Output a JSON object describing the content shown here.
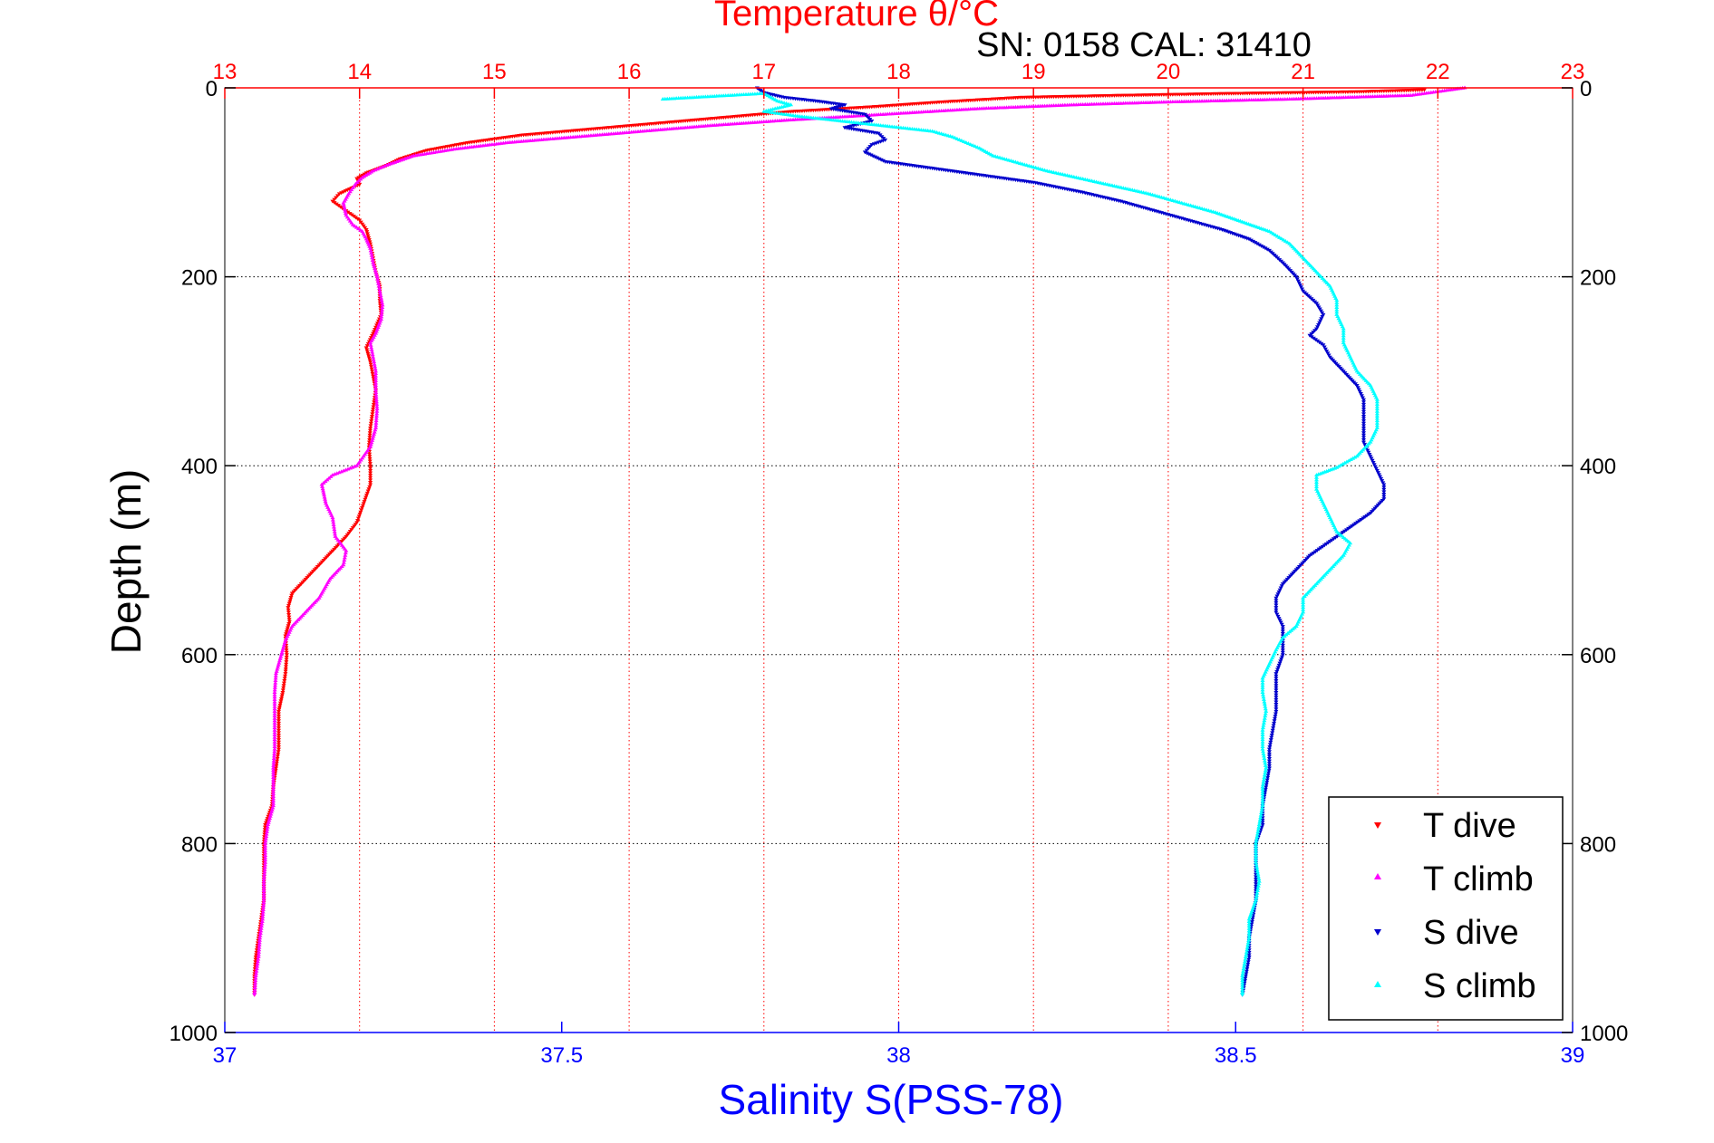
{
  "chart_data": {
    "type": "scatter",
    "title": "Temperature θ/°C",
    "subtitle": "SN: 0158  CAL: 31410",
    "xlabel_bottom": "Salinity S(PSS-78)",
    "ylabel": "Depth (m)",
    "xlim_temperature": [
      13,
      23
    ],
    "xlim_salinity": [
      37,
      39
    ],
    "ylim": [
      0,
      1000
    ],
    "y_reversed": true,
    "temperature_ticks": [
      "13",
      "14",
      "15",
      "16",
      "17",
      "18",
      "19",
      "20",
      "21",
      "22",
      "23"
    ],
    "salinity_ticks": [
      "37",
      "37.5",
      "38",
      "38.5",
      "39"
    ],
    "depth_ticks": [
      "0",
      "200",
      "400",
      "600",
      "800",
      "1000"
    ],
    "grid": true,
    "legend_position": "bottom-right",
    "colors": {
      "temperature_axis": "#ff0000",
      "salinity_axis": "#0000ff",
      "t_dive": "#ff0000",
      "t_climb": "#ff00ff",
      "s_dive": "#0000cc",
      "s_climb": "#00ffff"
    },
    "series": [
      {
        "name": "T dive",
        "axis": "temperature",
        "marker": "triangle-down",
        "points": [
          [
            21.9,
            2
          ],
          [
            21.4,
            4
          ],
          [
            20.4,
            6
          ],
          [
            19.6,
            8
          ],
          [
            18.9,
            10
          ],
          [
            18.3,
            15
          ],
          [
            17.8,
            20
          ],
          [
            17.2,
            25
          ],
          [
            16.8,
            30
          ],
          [
            16.4,
            35
          ],
          [
            16.0,
            40
          ],
          [
            15.6,
            45
          ],
          [
            15.2,
            50
          ],
          [
            14.8,
            58
          ],
          [
            14.5,
            66
          ],
          [
            14.3,
            75
          ],
          [
            14.2,
            82
          ],
          [
            14.05,
            90
          ],
          [
            13.98,
            96
          ],
          [
            14.0,
            102
          ],
          [
            13.85,
            112
          ],
          [
            13.8,
            120
          ],
          [
            13.9,
            130
          ],
          [
            14.0,
            140
          ],
          [
            14.05,
            150
          ],
          [
            14.08,
            165
          ],
          [
            14.1,
            180
          ],
          [
            14.12,
            195
          ],
          [
            14.15,
            210
          ],
          [
            14.15,
            225
          ],
          [
            14.16,
            240
          ],
          [
            14.1,
            260
          ],
          [
            14.05,
            275
          ],
          [
            14.08,
            290
          ],
          [
            14.1,
            305
          ],
          [
            14.12,
            320
          ],
          [
            14.1,
            340
          ],
          [
            14.08,
            360
          ],
          [
            14.07,
            380
          ],
          [
            14.08,
            400
          ],
          [
            14.08,
            420
          ],
          [
            14.03,
            440
          ],
          [
            13.98,
            460
          ],
          [
            13.9,
            475
          ],
          [
            13.8,
            490
          ],
          [
            13.7,
            505
          ],
          [
            13.6,
            520
          ],
          [
            13.5,
            535
          ],
          [
            13.47,
            550
          ],
          [
            13.48,
            565
          ],
          [
            13.45,
            580
          ],
          [
            13.46,
            600
          ],
          [
            13.45,
            620
          ],
          [
            13.43,
            640
          ],
          [
            13.4,
            660
          ],
          [
            13.4,
            680
          ],
          [
            13.4,
            700
          ],
          [
            13.38,
            720
          ],
          [
            13.36,
            740
          ],
          [
            13.35,
            760
          ],
          [
            13.3,
            780
          ],
          [
            13.29,
            800
          ],
          [
            13.29,
            820
          ],
          [
            13.29,
            840
          ],
          [
            13.29,
            860
          ],
          [
            13.27,
            880
          ],
          [
            13.25,
            900
          ],
          [
            13.23,
            920
          ],
          [
            13.22,
            940
          ],
          [
            13.22,
            960
          ]
        ]
      },
      {
        "name": "T climb",
        "axis": "temperature",
        "marker": "triangle-up",
        "points": [
          [
            22.2,
            0
          ],
          [
            21.8,
            8
          ],
          [
            20.9,
            12
          ],
          [
            20.0,
            15
          ],
          [
            19.3,
            18
          ],
          [
            18.6,
            22
          ],
          [
            17.9,
            28
          ],
          [
            17.2,
            34
          ],
          [
            16.6,
            40
          ],
          [
            16.1,
            46
          ],
          [
            15.6,
            52
          ],
          [
            15.1,
            58
          ],
          [
            14.7,
            65
          ],
          [
            14.4,
            72
          ],
          [
            14.2,
            82
          ],
          [
            14.1,
            88
          ],
          [
            14.02,
            95
          ],
          [
            13.97,
            102
          ],
          [
            13.92,
            112
          ],
          [
            13.88,
            122
          ],
          [
            13.9,
            135
          ],
          [
            13.95,
            145
          ],
          [
            14.02,
            152
          ],
          [
            14.05,
            160
          ],
          [
            14.08,
            170
          ],
          [
            14.1,
            185
          ],
          [
            14.13,
            200
          ],
          [
            14.15,
            215
          ],
          [
            14.17,
            230
          ],
          [
            14.16,
            245
          ],
          [
            14.12,
            260
          ],
          [
            14.08,
            270
          ],
          [
            14.1,
            285
          ],
          [
            14.12,
            300
          ],
          [
            14.12,
            320
          ],
          [
            14.13,
            340
          ],
          [
            14.12,
            360
          ],
          [
            14.08,
            380
          ],
          [
            13.98,
            400
          ],
          [
            13.8,
            410
          ],
          [
            13.72,
            420
          ],
          [
            13.75,
            440
          ],
          [
            13.8,
            455
          ],
          [
            13.82,
            475
          ],
          [
            13.9,
            490
          ],
          [
            13.88,
            505
          ],
          [
            13.78,
            520
          ],
          [
            13.7,
            540
          ],
          [
            13.6,
            555
          ],
          [
            13.5,
            570
          ],
          [
            13.45,
            585
          ],
          [
            13.42,
            600
          ],
          [
            13.38,
            620
          ],
          [
            13.37,
            640
          ],
          [
            13.37,
            660
          ],
          [
            13.37,
            680
          ],
          [
            13.37,
            700
          ],
          [
            13.36,
            720
          ],
          [
            13.36,
            740
          ],
          [
            13.36,
            760
          ],
          [
            13.32,
            780
          ],
          [
            13.3,
            800
          ],
          [
            13.3,
            820
          ],
          [
            13.29,
            840
          ],
          [
            13.29,
            860
          ],
          [
            13.28,
            880
          ],
          [
            13.26,
            900
          ],
          [
            13.25,
            920
          ],
          [
            13.23,
            940
          ],
          [
            13.22,
            960
          ]
        ]
      },
      {
        "name": "S dive",
        "axis": "salinity",
        "marker": "triangle-down",
        "points": [
          [
            37.79,
            0
          ],
          [
            37.8,
            5
          ],
          [
            37.83,
            10
          ],
          [
            37.88,
            14
          ],
          [
            37.92,
            18
          ],
          [
            37.9,
            22
          ],
          [
            37.95,
            28
          ],
          [
            37.96,
            35
          ],
          [
            37.92,
            42
          ],
          [
            37.97,
            48
          ],
          [
            37.98,
            55
          ],
          [
            37.96,
            60
          ],
          [
            37.95,
            68
          ],
          [
            37.98,
            78
          ],
          [
            38.05,
            85
          ],
          [
            38.12,
            92
          ],
          [
            38.2,
            100
          ],
          [
            38.27,
            110
          ],
          [
            38.33,
            120
          ],
          [
            38.38,
            130
          ],
          [
            38.43,
            140
          ],
          [
            38.48,
            150
          ],
          [
            38.52,
            160
          ],
          [
            38.55,
            172
          ],
          [
            38.57,
            185
          ],
          [
            38.59,
            200
          ],
          [
            38.6,
            215
          ],
          [
            38.62,
            228
          ],
          [
            38.63,
            240
          ],
          [
            38.62,
            255
          ],
          [
            38.61,
            262
          ],
          [
            38.63,
            272
          ],
          [
            38.64,
            285
          ],
          [
            38.66,
            300
          ],
          [
            38.68,
            315
          ],
          [
            38.69,
            330
          ],
          [
            38.69,
            345
          ],
          [
            38.69,
            360
          ],
          [
            38.69,
            375
          ],
          [
            38.7,
            390
          ],
          [
            38.71,
            405
          ],
          [
            38.72,
            420
          ],
          [
            38.72,
            435
          ],
          [
            38.7,
            450
          ],
          [
            38.67,
            465
          ],
          [
            38.64,
            480
          ],
          [
            38.61,
            495
          ],
          [
            38.59,
            510
          ],
          [
            38.57,
            525
          ],
          [
            38.56,
            540
          ],
          [
            38.56,
            555
          ],
          [
            38.57,
            570
          ],
          [
            38.57,
            585
          ],
          [
            38.57,
            600
          ],
          [
            38.56,
            620
          ],
          [
            38.56,
            640
          ],
          [
            38.56,
            660
          ],
          [
            38.555,
            680
          ],
          [
            38.55,
            700
          ],
          [
            38.55,
            720
          ],
          [
            38.545,
            740
          ],
          [
            38.54,
            760
          ],
          [
            38.54,
            780
          ],
          [
            38.53,
            800
          ],
          [
            38.53,
            820
          ],
          [
            38.53,
            840
          ],
          [
            38.53,
            860
          ],
          [
            38.525,
            880
          ],
          [
            38.52,
            900
          ],
          [
            38.52,
            920
          ],
          [
            38.515,
            940
          ],
          [
            38.51,
            960
          ]
        ]
      },
      {
        "name": "S climb",
        "axis": "salinity",
        "marker": "triangle-up",
        "points": [
          [
            37.65,
            12
          ],
          [
            37.7,
            10
          ],
          [
            37.75,
            8
          ],
          [
            37.8,
            6
          ],
          [
            37.82,
            14
          ],
          [
            37.84,
            18
          ],
          [
            37.8,
            25
          ],
          [
            37.85,
            30
          ],
          [
            37.9,
            34
          ],
          [
            37.95,
            38
          ],
          [
            38.0,
            42
          ],
          [
            38.05,
            46
          ],
          [
            38.08,
            52
          ],
          [
            38.1,
            58
          ],
          [
            38.12,
            64
          ],
          [
            38.14,
            72
          ],
          [
            38.18,
            80
          ],
          [
            38.22,
            88
          ],
          [
            38.27,
            96
          ],
          [
            38.32,
            104
          ],
          [
            38.37,
            112
          ],
          [
            38.42,
            122
          ],
          [
            38.47,
            132
          ],
          [
            38.51,
            142
          ],
          [
            38.55,
            152
          ],
          [
            38.58,
            165
          ],
          [
            38.6,
            180
          ],
          [
            38.62,
            195
          ],
          [
            38.64,
            210
          ],
          [
            38.65,
            225
          ],
          [
            38.65,
            240
          ],
          [
            38.66,
            255
          ],
          [
            38.66,
            270
          ],
          [
            38.67,
            285
          ],
          [
            38.68,
            300
          ],
          [
            38.7,
            315
          ],
          [
            38.71,
            330
          ],
          [
            38.71,
            345
          ],
          [
            38.71,
            360
          ],
          [
            38.7,
            375
          ],
          [
            38.68,
            390
          ],
          [
            38.65,
            402
          ],
          [
            38.62,
            410
          ],
          [
            38.62,
            425
          ],
          [
            38.63,
            440
          ],
          [
            38.64,
            455
          ],
          [
            38.65,
            470
          ],
          [
            38.67,
            482
          ],
          [
            38.66,
            495
          ],
          [
            38.64,
            510
          ],
          [
            38.62,
            525
          ],
          [
            38.6,
            540
          ],
          [
            38.6,
            555
          ],
          [
            38.59,
            570
          ],
          [
            38.57,
            582
          ],
          [
            38.56,
            595
          ],
          [
            38.55,
            610
          ],
          [
            38.54,
            625
          ],
          [
            38.54,
            640
          ],
          [
            38.545,
            660
          ],
          [
            38.54,
            680
          ],
          [
            38.54,
            700
          ],
          [
            38.545,
            720
          ],
          [
            38.54,
            740
          ],
          [
            38.54,
            760
          ],
          [
            38.535,
            780
          ],
          [
            38.53,
            800
          ],
          [
            38.53,
            820
          ],
          [
            38.535,
            840
          ],
          [
            38.53,
            860
          ],
          [
            38.52,
            880
          ],
          [
            38.52,
            900
          ],
          [
            38.515,
            920
          ],
          [
            38.51,
            940
          ],
          [
            38.51,
            960
          ]
        ]
      }
    ]
  }
}
